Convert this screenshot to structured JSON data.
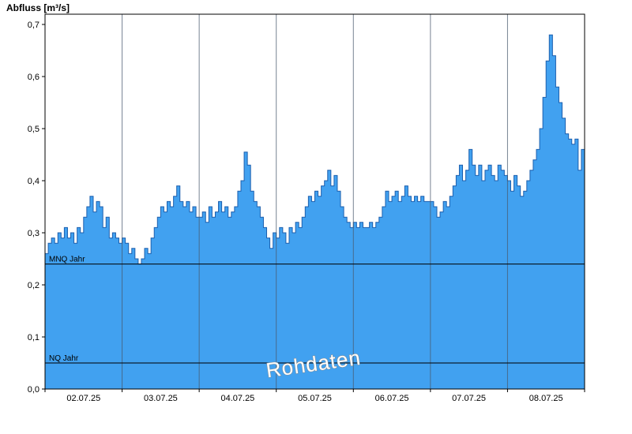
{
  "watermark": "Rohdaten",
  "colors": {
    "background": "#FFFFFF",
    "area_fill": "#41A1F0",
    "area_line": "#1C5FAE",
    "grid": "#4A5A6E",
    "axis": "#000000",
    "ref_line": "#000000",
    "watermark_fill": "#FFFFFF",
    "watermark_outline": "#8C8C8C"
  },
  "chart_data": {
    "type": "area",
    "title": "Abfluss [m³/s]",
    "ylabel": "Abfluss [m³/s]",
    "unit": "m³/s",
    "ylim": [
      0.0,
      0.7
    ],
    "yticks": [
      "0,0",
      "0,1",
      "0,2",
      "0,3",
      "0,4",
      "0,5",
      "0,6",
      "0,7"
    ],
    "xticks": [
      "02.07.25",
      "03.07.25",
      "04.07.25",
      "05.07.25",
      "06.07.25",
      "07.07.25",
      "08.07.25"
    ],
    "x_start": "02.07.25 00:00",
    "x_end": "09.07.25 00:00",
    "sample_interval_hours": 1,
    "grid": "vertical-daily",
    "legend": "none",
    "ref_lines": [
      {
        "label": "MNQ Jahr",
        "value": 0.24
      },
      {
        "label": "NQ Jahr",
        "value": 0.05
      }
    ],
    "series": [
      {
        "name": "Rohdaten",
        "values": [
          0.26,
          0.28,
          0.29,
          0.28,
          0.3,
          0.29,
          0.31,
          0.29,
          0.3,
          0.28,
          0.31,
          0.3,
          0.33,
          0.35,
          0.37,
          0.34,
          0.36,
          0.35,
          0.31,
          0.33,
          0.29,
          0.3,
          0.29,
          0.28,
          0.29,
          0.28,
          0.26,
          0.27,
          0.25,
          0.24,
          0.25,
          0.27,
          0.26,
          0.29,
          0.31,
          0.33,
          0.35,
          0.34,
          0.36,
          0.35,
          0.37,
          0.39,
          0.36,
          0.35,
          0.36,
          0.34,
          0.35,
          0.33,
          0.33,
          0.34,
          0.32,
          0.35,
          0.33,
          0.34,
          0.36,
          0.34,
          0.35,
          0.33,
          0.34,
          0.35,
          0.38,
          0.4,
          0.455,
          0.43,
          0.38,
          0.36,
          0.35,
          0.33,
          0.31,
          0.29,
          0.27,
          0.3,
          0.29,
          0.31,
          0.3,
          0.28,
          0.31,
          0.3,
          0.32,
          0.31,
          0.33,
          0.35,
          0.37,
          0.36,
          0.38,
          0.37,
          0.39,
          0.4,
          0.42,
          0.39,
          0.41,
          0.38,
          0.35,
          0.33,
          0.32,
          0.31,
          0.32,
          0.31,
          0.32,
          0.31,
          0.31,
          0.32,
          0.31,
          0.32,
          0.33,
          0.35,
          0.38,
          0.36,
          0.37,
          0.38,
          0.36,
          0.37,
          0.39,
          0.37,
          0.36,
          0.37,
          0.36,
          0.37,
          0.36,
          0.36,
          0.36,
          0.35,
          0.33,
          0.34,
          0.36,
          0.35,
          0.37,
          0.39,
          0.41,
          0.43,
          0.4,
          0.42,
          0.46,
          0.43,
          0.41,
          0.43,
          0.4,
          0.42,
          0.43,
          0.41,
          0.4,
          0.43,
          0.42,
          0.41,
          0.4,
          0.38,
          0.41,
          0.39,
          0.37,
          0.38,
          0.4,
          0.42,
          0.44,
          0.46,
          0.5,
          0.56,
          0.63,
          0.68,
          0.64,
          0.58,
          0.55,
          0.52,
          0.49,
          0.48,
          0.47,
          0.48,
          0.42,
          0.46
        ]
      }
    ]
  }
}
